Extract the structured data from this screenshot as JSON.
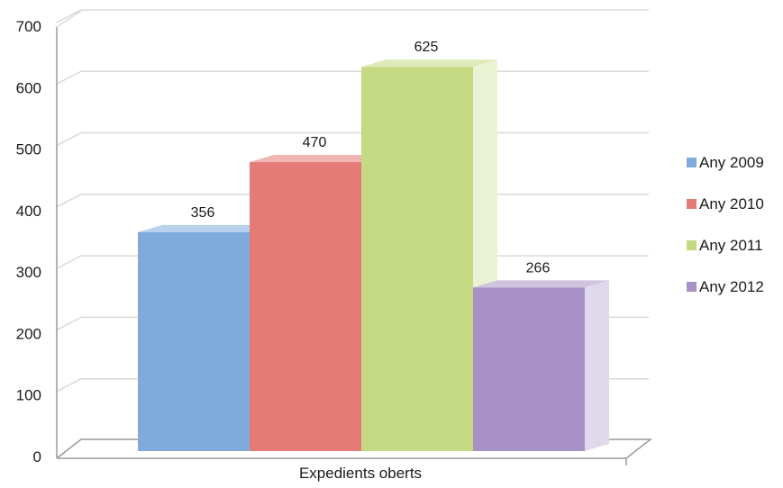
{
  "chart_data": {
    "type": "bar",
    "categories": [
      "Expedients oberts"
    ],
    "series": [
      {
        "name": "Any 2009",
        "values": [
          356
        ],
        "color": "#7eabdc"
      },
      {
        "name": "Any 2010",
        "values": [
          470
        ],
        "color": "#e57b77"
      },
      {
        "name": "Any 2011",
        "values": [
          625
        ],
        "color": "#c4d982"
      },
      {
        "name": "Any 2012",
        "values": [
          266
        ],
        "color": "#a791c6"
      }
    ],
    "data_labels": [
      "356",
      "470",
      "625",
      "266"
    ],
    "y_ticks": [
      "0",
      "100",
      "200",
      "300",
      "400",
      "500",
      "600",
      "700"
    ],
    "ylim": [
      0,
      700
    ],
    "xlabel": "Expedients oberts",
    "ylabel": "",
    "title": "",
    "grid": true,
    "style": "3d-perspective",
    "legend_position": "right"
  }
}
